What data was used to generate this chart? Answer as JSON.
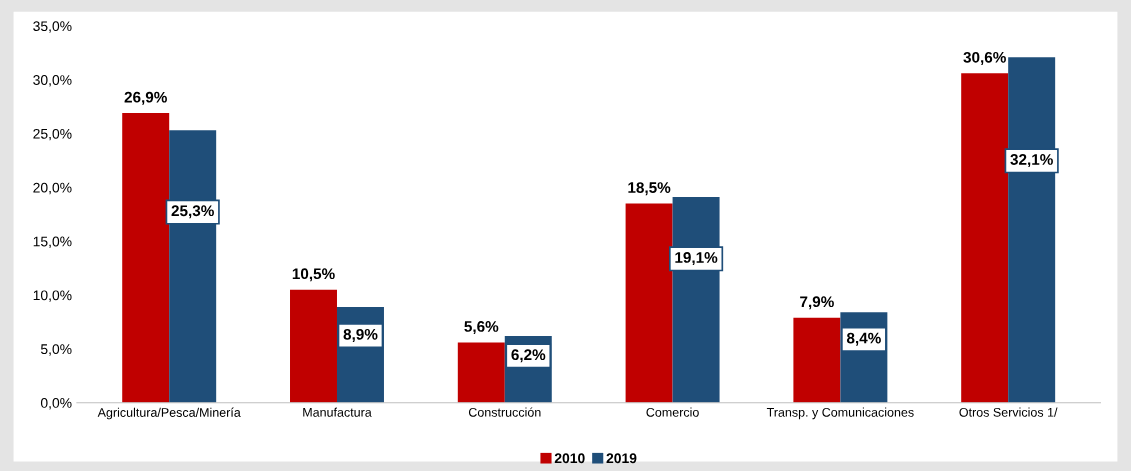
{
  "chart_data": {
    "type": "bar",
    "categories": [
      "Agricultura/Pesca/Minería",
      "Manufactura",
      "Construcción",
      "Comercio",
      "Transp. y Comunicaciones",
      "Otros Servicios 1/"
    ],
    "series": [
      {
        "name": "2010",
        "color": "#c00000",
        "values": [
          26.9,
          10.5,
          5.6,
          18.5,
          7.9,
          30.6
        ],
        "value_labels": [
          "26,9%",
          "10,5%",
          "5,6%",
          "18,5%",
          "7,9%",
          "30,6%"
        ]
      },
      {
        "name": "2019",
        "color": "#1f4e79",
        "values": [
          25.3,
          8.9,
          6.2,
          19.1,
          8.4,
          32.1
        ],
        "value_labels": [
          "25,3%",
          "8,9%",
          "6,2%",
          "19,1%",
          "8,4%",
          "32,1%"
        ]
      }
    ],
    "ylim": [
      0,
      35
    ],
    "yticks": [
      {
        "value": 0,
        "label": "0,0%"
      },
      {
        "value": 5,
        "label": "5,0%"
      },
      {
        "value": 10,
        "label": "10,0%"
      },
      {
        "value": 15,
        "label": "15,0%"
      },
      {
        "value": 20,
        "label": "20,0%"
      },
      {
        "value": 25,
        "label": "25,0%"
      },
      {
        "value": 30,
        "label": "30,0%"
      },
      {
        "value": 35,
        "label": "35,0%"
      }
    ],
    "grid": false,
    "legend": "bottom"
  }
}
